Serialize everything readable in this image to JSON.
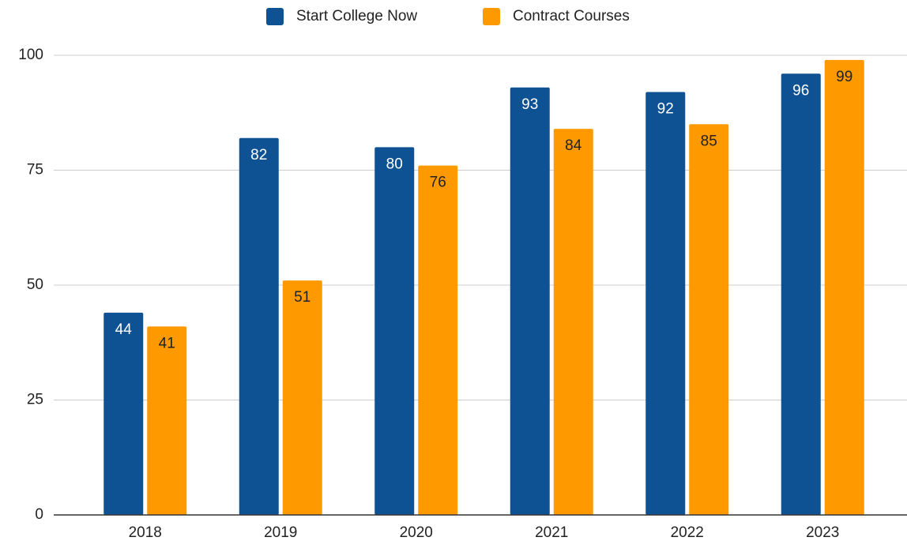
{
  "chart_data": {
    "type": "bar",
    "categories": [
      "2018",
      "2019",
      "2020",
      "2021",
      "2022",
      "2023"
    ],
    "series": [
      {
        "name": "Start College Now",
        "color": "#0f5294",
        "values": [
          44,
          82,
          80,
          93,
          92,
          96
        ]
      },
      {
        "name": "Contract Courses",
        "color": "#ff9900",
        "values": [
          41,
          51,
          76,
          84,
          85,
          99
        ]
      }
    ],
    "ylim": [
      0,
      100
    ],
    "yticks": [
      0,
      25,
      50,
      75,
      100
    ],
    "grid": true,
    "legend": "top"
  }
}
